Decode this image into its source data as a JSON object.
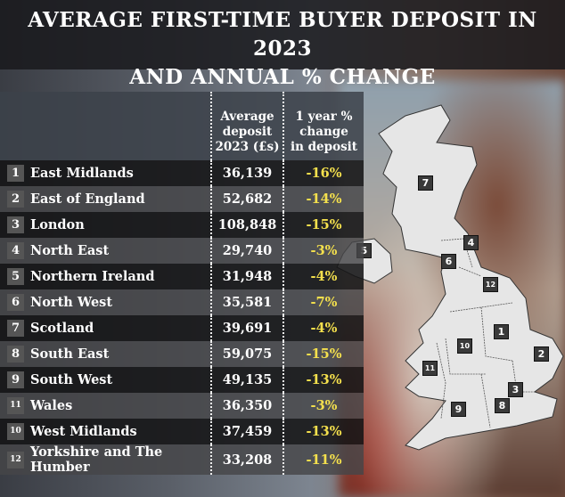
{
  "title": "AVERAGE FIRST-TIME BUYER DEPOSIT IN 2023 AND ANNUAL % CHANGE",
  "title_line1": "AVERAGE FIRST-TIME BUYER DEPOSIT IN 2023",
  "title_line2": "AND ANNUAL % CHANGE",
  "chart_data": {
    "type": "table",
    "title": "AVERAGE FIRST-TIME BUYER DEPOSIT IN 2023 AND ANNUAL % CHANGE",
    "columns": [
      "Average deposit 2023 (£s)",
      "1 year % change in deposit"
    ],
    "rows": [
      {
        "id": "1",
        "region": "East Midlands",
        "deposit": "36,139",
        "change": "-16%"
      },
      {
        "id": "2",
        "region": "East of England",
        "deposit": "52,682",
        "change": "-14%"
      },
      {
        "id": "3",
        "region": "London",
        "deposit": "108,848",
        "change": "-15%"
      },
      {
        "id": "4",
        "region": "North East",
        "deposit": "29,740",
        "change": "-3%"
      },
      {
        "id": "5",
        "region": "Northern Ireland",
        "deposit": "31,948",
        "change": "-4%"
      },
      {
        "id": "6",
        "region": "North West",
        "deposit": "35,581",
        "change": "-7%"
      },
      {
        "id": "7",
        "region": "Scotland",
        "deposit": "39,691",
        "change": "-4%"
      },
      {
        "id": "8",
        "region": "South East",
        "deposit": "59,075",
        "change": "-15%"
      },
      {
        "id": "9",
        "region": "South West",
        "deposit": "49,135",
        "change": "-13%"
      },
      {
        "id": "11",
        "region": "Wales",
        "deposit": "36,350",
        "change": "-3%"
      },
      {
        "id": "10",
        "region": "West Midlands",
        "deposit": "37,459",
        "change": "-13%"
      },
      {
        "id": "12",
        "region": "Yorkshire and The Humber",
        "deposit": "33,208",
        "change": "-11%"
      }
    ]
  },
  "header": {
    "deposit_l1": "Average",
    "deposit_l2": "deposit",
    "deposit_l3": "2023 (£s)",
    "change_l1": "1 year %",
    "change_l2": "change",
    "change_l3": "in deposit"
  },
  "map_markers": [
    "7",
    "4",
    "5",
    "6",
    "12",
    "1",
    "10",
    "2",
    "11",
    "3",
    "8",
    "9"
  ],
  "colors": {
    "change_text": "#f4e04d",
    "map_fill": "#e6e6e6"
  }
}
